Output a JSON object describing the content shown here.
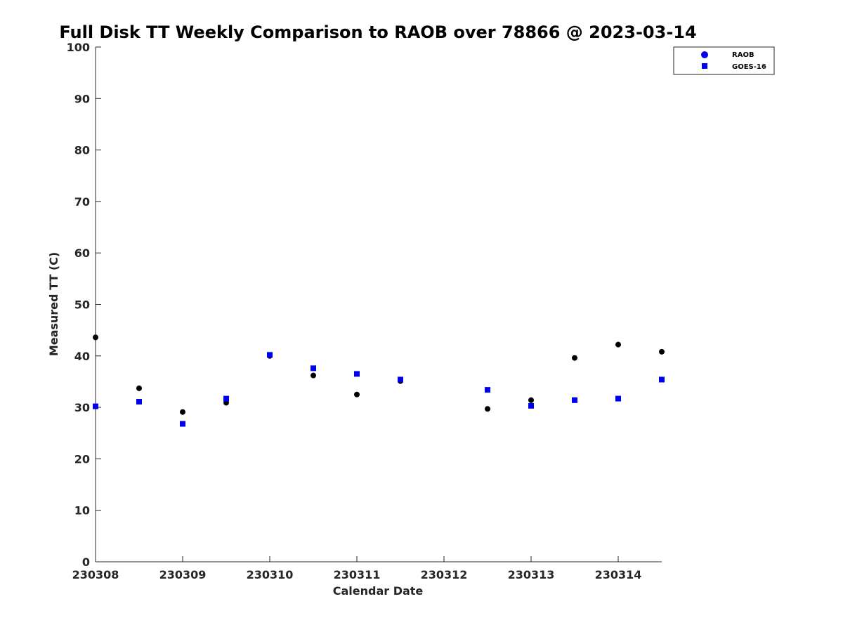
{
  "chart_data": {
    "type": "scatter",
    "title": "Full Disk TT Weekly Comparison to RAOB over 78866 @ 2023-03-14",
    "xlabel": "Calendar Date",
    "ylabel": "Measured TT (C)",
    "xlim": [
      "2023-03-08T00:00",
      "2023-03-14T12:00"
    ],
    "ylim": [
      0,
      100
    ],
    "yticks": [
      0,
      10,
      20,
      30,
      40,
      50,
      60,
      70,
      80,
      90,
      100
    ],
    "xticks": [
      {
        "date": "2023-03-08",
        "label": "230308"
      },
      {
        "date": "2023-03-09",
        "label": "230309"
      },
      {
        "date": "2023-03-10",
        "label": "230310"
      },
      {
        "date": "2023-03-11",
        "label": "230311"
      },
      {
        "date": "2023-03-12",
        "label": "230312"
      },
      {
        "date": "2023-03-13",
        "label": "230313"
      },
      {
        "date": "2023-03-14",
        "label": "230314"
      }
    ],
    "legend_position": "top-right",
    "grid": false,
    "series": [
      {
        "name": "RAOB",
        "marker": "circle",
        "color": "#000000",
        "points": [
          {
            "x": "2023-03-08T00:00",
            "y": 43.6
          },
          {
            "x": "2023-03-08T12:00",
            "y": 33.7
          },
          {
            "x": "2023-03-09T00:00",
            "y": 29.1
          },
          {
            "x": "2023-03-09T12:00",
            "y": 30.9
          },
          {
            "x": "2023-03-10T00:00",
            "y": 40.0
          },
          {
            "x": "2023-03-10T12:00",
            "y": 36.2
          },
          {
            "x": "2023-03-11T00:00",
            "y": 32.5
          },
          {
            "x": "2023-03-11T12:00",
            "y": 35.1
          },
          {
            "x": "2023-03-12T12:00",
            "y": 29.7
          },
          {
            "x": "2023-03-13T00:00",
            "y": 31.4
          },
          {
            "x": "2023-03-13T12:00",
            "y": 39.6
          },
          {
            "x": "2023-03-14T00:00",
            "y": 42.2
          },
          {
            "x": "2023-03-14T12:00",
            "y": 40.8
          }
        ]
      },
      {
        "name": "GOES-16",
        "marker": "square",
        "color": "#0000ee",
        "points": [
          {
            "x": "2023-03-08T00:00",
            "y": 30.2
          },
          {
            "x": "2023-03-08T12:00",
            "y": 31.1
          },
          {
            "x": "2023-03-09T00:00",
            "y": 26.8
          },
          {
            "x": "2023-03-09T12:00",
            "y": 31.7
          },
          {
            "x": "2023-03-10T00:00",
            "y": 40.2
          },
          {
            "x": "2023-03-10T12:00",
            "y": 37.6
          },
          {
            "x": "2023-03-11T00:00",
            "y": 36.5
          },
          {
            "x": "2023-03-11T12:00",
            "y": 35.4
          },
          {
            "x": "2023-03-12T12:00",
            "y": 33.4
          },
          {
            "x": "2023-03-13T00:00",
            "y": 30.3
          },
          {
            "x": "2023-03-13T12:00",
            "y": 31.4
          },
          {
            "x": "2023-03-14T00:00",
            "y": 31.7
          },
          {
            "x": "2023-03-14T12:00",
            "y": 35.4
          }
        ]
      }
    ]
  }
}
